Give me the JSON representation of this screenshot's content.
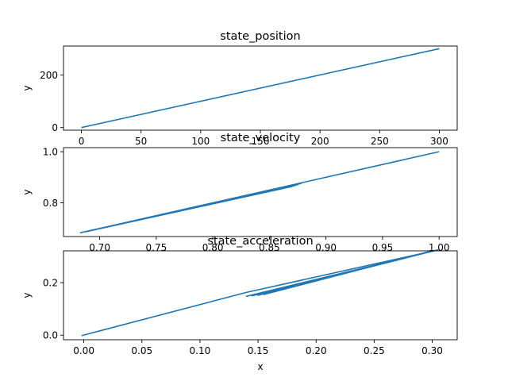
{
  "chart_data": [
    {
      "type": "line",
      "title": "state_position",
      "xlabel": "",
      "ylabel": "y",
      "xlim": [
        -15,
        315
      ],
      "ylim": [
        -10,
        310
      ],
      "xticks": [
        0,
        50,
        100,
        150,
        200,
        250,
        300
      ],
      "xtick_labels": [
        "0",
        "50",
        "100",
        "150",
        "200",
        "250",
        "300"
      ],
      "yticks": [
        0,
        200
      ],
      "ytick_labels": [
        "0",
        "200"
      ],
      "series": [
        {
          "color": "#1f77b4",
          "x": [
            0,
            300
          ],
          "y": [
            0,
            300
          ]
        }
      ]
    },
    {
      "type": "line",
      "title": "state_velocity",
      "xlabel": "",
      "ylabel": "y",
      "xlim": [
        0.668,
        1.016
      ],
      "ylim": [
        0.668,
        1.016
      ],
      "xticks": [
        0.7,
        0.75,
        0.8,
        0.85,
        0.9,
        0.95,
        1.0
      ],
      "xtick_labels": [
        "0.70",
        "0.75",
        "0.80",
        "0.85",
        "0.90",
        "0.95",
        "1.00"
      ],
      "yticks": [
        0.8,
        1.0
      ],
      "ytick_labels": [
        "0.8",
        "1.0"
      ],
      "series": [
        {
          "color": "#1f77b4",
          "x": [
            1.0,
            0.88,
            0.683,
            0.878,
            0.685,
            0.875,
            0.688,
            0.872,
            0.69,
            0.87
          ],
          "y": [
            1.0,
            0.88,
            0.683,
            0.876,
            0.685,
            0.871,
            0.687,
            0.867,
            0.689,
            0.864
          ]
        }
      ]
    },
    {
      "type": "line",
      "title": "state_acceleration",
      "xlabel": "x",
      "ylabel": "y",
      "xlim": [
        -0.0175,
        0.3215
      ],
      "ylim": [
        -0.0175,
        0.3215
      ],
      "xticks": [
        0.0,
        0.05,
        0.1,
        0.15,
        0.2,
        0.25,
        0.3
      ],
      "xtick_labels": [
        "0.00",
        "0.05",
        "0.10",
        "0.15",
        "0.20",
        "0.25",
        "0.30"
      ],
      "yticks": [
        0.0,
        0.2
      ],
      "ytick_labels": [
        "0.0",
        "0.2"
      ],
      "series": [
        {
          "color": "#1f77b4",
          "x": [
            -0.002,
            0.14,
            0.305,
            0.14,
            0.303,
            0.145,
            0.3,
            0.15,
            0.297,
            0.155,
            0.295
          ],
          "y": [
            -0.002,
            0.163,
            0.325,
            0.148,
            0.323,
            0.15,
            0.32,
            0.152,
            0.318,
            0.155,
            0.316
          ]
        }
      ]
    }
  ]
}
